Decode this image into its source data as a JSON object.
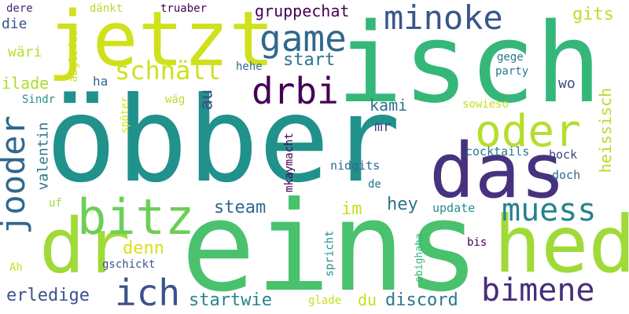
{
  "words": [
    {
      "text": "öbber",
      "color": "#21918c"
    },
    {
      "text": "isch",
      "color": "#35b779"
    },
    {
      "text": "jetzt",
      "color": "#d0e11c"
    },
    {
      "text": "eins",
      "color": "#4ac16d"
    },
    {
      "text": "das",
      "color": "#46327e"
    },
    {
      "text": "hed",
      "color": "#a0da39"
    },
    {
      "text": "dr",
      "color": "#a0da39"
    },
    {
      "text": "oder",
      "color": "#b5de2b"
    },
    {
      "text": "bitz",
      "color": "#6ece58"
    },
    {
      "text": "game",
      "color": "#31688e"
    },
    {
      "text": "drbi",
      "color": "#440154"
    },
    {
      "text": "minoke",
      "color": "#39568c"
    },
    {
      "text": "jooder",
      "color": "#31688e"
    },
    {
      "text": "muess",
      "color": "#26828e"
    },
    {
      "text": "bimene",
      "color": "#472d7b"
    },
    {
      "text": "ich",
      "color": "#3b528b"
    },
    {
      "text": "schnäll",
      "color": "#cde11d"
    },
    {
      "text": "heissisch",
      "color": "#b5de2b"
    },
    {
      "text": "gruppechat",
      "color": "#440154"
    },
    {
      "text": "start",
      "color": "#2c728e"
    },
    {
      "text": "steam",
      "color": "#31688e"
    },
    {
      "text": "discord",
      "color": "#2a788e"
    },
    {
      "text": "startwie",
      "color": "#25858e"
    },
    {
      "text": "erledige",
      "color": "#3b528b"
    },
    {
      "text": "kami",
      "color": "#2c728e"
    },
    {
      "text": "hey",
      "color": "#2c728e"
    },
    {
      "text": "gits",
      "color": "#bddf26"
    },
    {
      "text": "wäri",
      "color": "#b5de2b"
    },
    {
      "text": "die",
      "color": "#3b528b"
    },
    {
      "text": "ilade",
      "color": "#addc30"
    },
    {
      "text": "au",
      "color": "#3e4989"
    },
    {
      "text": "valentin",
      "color": "#2a788e"
    },
    {
      "text": "denn",
      "color": "#d8e219"
    },
    {
      "text": "im",
      "color": "#c8e020"
    },
    {
      "text": "du",
      "color": "#c8e020"
    },
    {
      "text": "mr",
      "color": "#3e4989"
    },
    {
      "text": "wo",
      "color": "#3e4989"
    },
    {
      "text": "hehe",
      "color": "#31688e"
    },
    {
      "text": "ha",
      "color": "#31688e"
    },
    {
      "text": "bock",
      "color": "#414487"
    },
    {
      "text": "doch",
      "color": "#31688e"
    },
    {
      "text": "cocktails",
      "color": "#2a788e"
    },
    {
      "text": "nidgits",
      "color": "#31688e"
    },
    {
      "text": "update",
      "color": "#21918c"
    },
    {
      "text": "gege",
      "color": "#2c728e"
    },
    {
      "text": "party",
      "color": "#2a788e"
    },
    {
      "text": "sowieso",
      "color": "#c8e020"
    },
    {
      "text": "truaber",
      "color": "#440154"
    },
    {
      "text": "dänkt",
      "color": "#b5de2b"
    },
    {
      "text": "dere",
      "color": "#482878"
    },
    {
      "text": "Sindr",
      "color": "#21918c"
    },
    {
      "text": "wäg",
      "color": "#b5de2b"
    },
    {
      "text": "uf",
      "color": "#a0da39"
    },
    {
      "text": "gschickt",
      "color": "#3b528b"
    },
    {
      "text": "Ah",
      "color": "#c8e020"
    },
    {
      "text": "de",
      "color": "#2c728e"
    },
    {
      "text": "bis",
      "color": "#440154"
    },
    {
      "text": "glade",
      "color": "#c8e020"
    },
    {
      "text": "abglofeah",
      "color": "#c8e020"
    },
    {
      "text": "spöter",
      "color": "#d8e219"
    },
    {
      "text": "mkaymacht",
      "color": "#440154"
    },
    {
      "text": "spricht",
      "color": "#21918c"
    },
    {
      "text": "obighaha",
      "color": "#35b779"
    }
  ]
}
